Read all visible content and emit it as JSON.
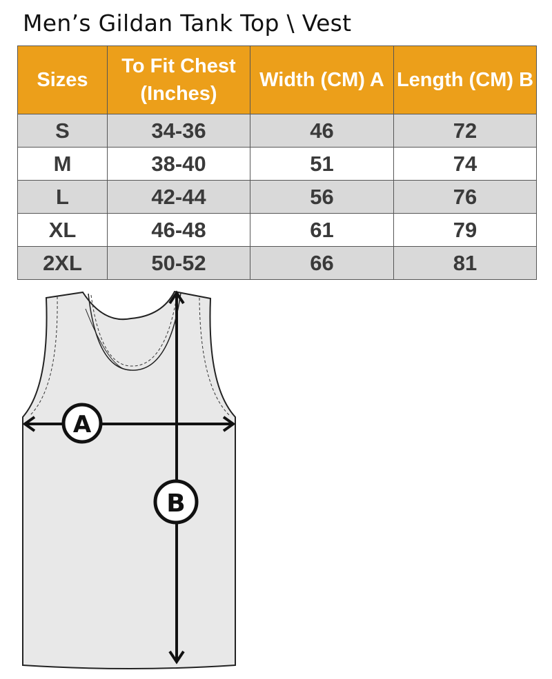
{
  "title": "Men’s Gildan Tank Top \\ Vest",
  "table": {
    "headers": [
      "Sizes",
      "To Fit Chest (Inches)",
      "Width (CM) A",
      "Length  (CM) B"
    ],
    "rows": [
      [
        "S",
        "34-36",
        "46",
        "72"
      ],
      [
        "M",
        "38-40",
        "51",
        "74"
      ],
      [
        "L",
        "42-44",
        "56",
        "76"
      ],
      [
        "XL",
        "46-48",
        "61",
        "79"
      ],
      [
        "2XL",
        "50-52",
        "66",
        "81"
      ]
    ]
  },
  "diagram": {
    "label_a": "A",
    "label_b": "B"
  },
  "colors": {
    "header": "#EC9F1A",
    "stripe": "#D9D9D9"
  }
}
